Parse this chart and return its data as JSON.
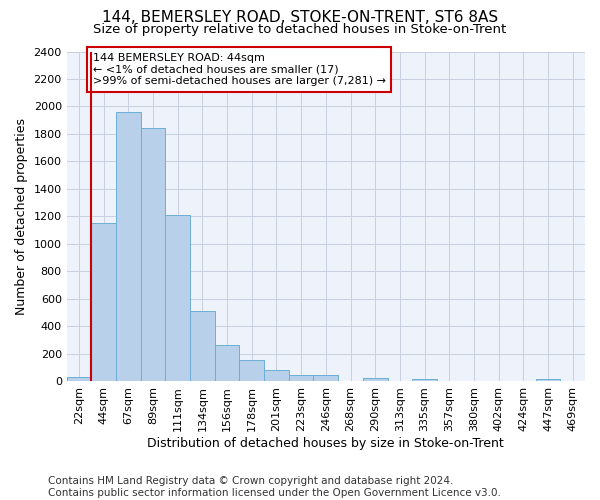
{
  "title": "144, BEMERSLEY ROAD, STOKE-ON-TRENT, ST6 8AS",
  "subtitle": "Size of property relative to detached houses in Stoke-on-Trent",
  "xlabel": "Distribution of detached houses by size in Stoke-on-Trent",
  "ylabel": "Number of detached properties",
  "categories": [
    "22sqm",
    "44sqm",
    "67sqm",
    "89sqm",
    "111sqm",
    "134sqm",
    "156sqm",
    "178sqm",
    "201sqm",
    "223sqm",
    "246sqm",
    "268sqm",
    "290sqm",
    "313sqm",
    "335sqm",
    "357sqm",
    "380sqm",
    "402sqm",
    "424sqm",
    "447sqm",
    "469sqm"
  ],
  "values": [
    30,
    1150,
    1960,
    1840,
    1210,
    515,
    265,
    155,
    80,
    50,
    45,
    0,
    25,
    0,
    17,
    0,
    0,
    0,
    0,
    20,
    0
  ],
  "bar_color": "#b8d0ea",
  "bar_edge_color": "#6baed6",
  "annotation_box_text": "144 BEMERSLEY ROAD: 44sqm\n← <1% of detached houses are smaller (17)\n>99% of semi-detached houses are larger (7,281) →",
  "annotation_box_color": "#ffffff",
  "annotation_box_edge_color": "#cc0000",
  "vline_x_index": 1,
  "ylim": [
    0,
    2400
  ],
  "yticks": [
    0,
    200,
    400,
    600,
    800,
    1000,
    1200,
    1400,
    1600,
    1800,
    2000,
    2200,
    2400
  ],
  "footnote": "Contains HM Land Registry data © Crown copyright and database right 2024.\nContains public sector information licensed under the Open Government Licence v3.0.",
  "bg_color": "#eef2fb",
  "grid_color": "#c8cfe0",
  "title_fontsize": 11,
  "subtitle_fontsize": 9.5,
  "xlabel_fontsize": 9,
  "ylabel_fontsize": 9,
  "tick_fontsize": 8,
  "annot_fontsize": 8,
  "footnote_fontsize": 7.5
}
